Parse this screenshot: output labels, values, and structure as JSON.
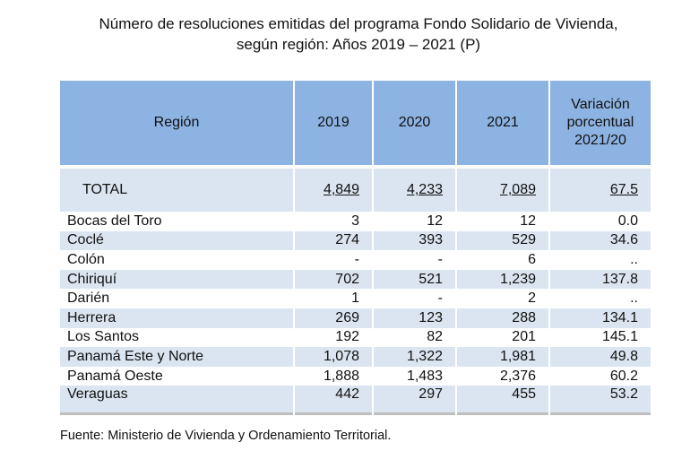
{
  "title_line1": "Número de resoluciones emitidas del programa Fondo Solidario de Vivienda,",
  "title_line2": "según región: Años 2019 – 2021 (P)",
  "headers": [
    "Región",
    "2019",
    "2020",
    "2021",
    "Variación porcentual 2021/20"
  ],
  "total": {
    "region": "TOTAL",
    "y2019": "4,849",
    "y2020": "4,233",
    "y2021": "7,089",
    "var": "67.5"
  },
  "rows": [
    {
      "region": "Bocas del Toro",
      "y2019": "3",
      "y2020": "12",
      "y2021": "12",
      "var": "0.0"
    },
    {
      "region": "Coclé",
      "y2019": "274",
      "y2020": "393",
      "y2021": "529",
      "var": "34.6"
    },
    {
      "region": "Colón",
      "y2019": "-",
      "y2020": "-",
      "y2021": "6",
      "var": ".."
    },
    {
      "region": "Chiriquí",
      "y2019": "702",
      "y2020": "521",
      "y2021": "1,239",
      "var": "137.8"
    },
    {
      "region": "Darién",
      "y2019": "1",
      "y2020": "-",
      "y2021": "2",
      "var": ".."
    },
    {
      "region": "Herrera",
      "y2019": "269",
      "y2020": "123",
      "y2021": "288",
      "var": "134.1"
    },
    {
      "region": "Los Santos",
      "y2019": "192",
      "y2020": "82",
      "y2021": "201",
      "var": "145.1"
    },
    {
      "region": "Panamá Este y Norte",
      "y2019": "1,078",
      "y2020": "1,322",
      "y2021": "1,981",
      "var": "49.8"
    },
    {
      "region": "Panamá Oeste",
      "y2019": "1,888",
      "y2020": "1,483",
      "y2021": "2,376",
      "var": "60.2"
    },
    {
      "region": "Veraguas",
      "y2019": "442",
      "y2020": "297",
      "y2021": "455",
      "var": "53.2"
    }
  ],
  "source": "Fuente: Ministerio de Vivienda y Ordenamiento Territorial.",
  "colors": {
    "header": "#8db3e2",
    "shade": "#dbe5f1"
  }
}
